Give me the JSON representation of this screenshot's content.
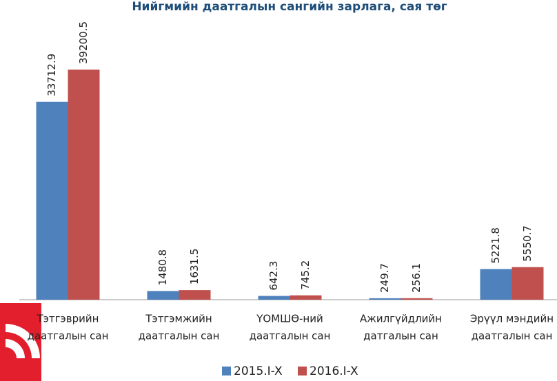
{
  "chart_data": {
    "type": "bar",
    "title": "Нийгмийн даатгалын сангийн зарлага, сая төг",
    "categories": [
      [
        "Тэтгэврийн",
        "даатгалын сан"
      ],
      [
        "Тэтгэмжийн",
        "даатгалын сан"
      ],
      [
        "ҮОМШӨ-ний",
        "даатгалын сан"
      ],
      [
        "Ажилгүйдлийн",
        "датгалын сан"
      ],
      [
        "Эрүүл мэндийн",
        "даатгалын сан"
      ]
    ],
    "series": [
      {
        "name": "2015.I-X",
        "color": "#4f81bd",
        "values": [
          33712.9,
          1480.8,
          642.3,
          249.7,
          5221.8
        ]
      },
      {
        "name": "2016.I-X",
        "color": "#c0504d",
        "values": [
          39200.5,
          1631.5,
          745.2,
          256.1,
          5550.7
        ]
      }
    ],
    "legend": "bottom"
  }
}
